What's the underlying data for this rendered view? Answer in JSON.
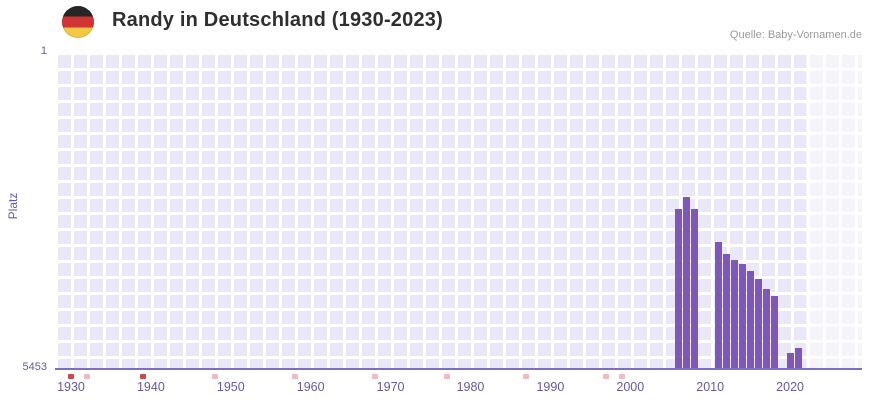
{
  "header": {
    "title": "Randy in Deutschland (1930-2023)",
    "source": "Quelle: Baby-Vornamen.de"
  },
  "chart_data": {
    "type": "bar",
    "title": "Randy in Deutschland (1930-2023)",
    "xlabel": "",
    "ylabel": "Platz",
    "legend": "none",
    "grid": "checkered",
    "y_axis": {
      "top_label": "1",
      "bottom_label": "5453",
      "min": 1,
      "max": 5453,
      "inverted": true
    },
    "x_axis": {
      "range_start": 1928,
      "range_end": 2029,
      "tick_years": [
        1930,
        1940,
        1950,
        1960,
        1970,
        1980,
        1990,
        2000,
        2010,
        2020
      ]
    },
    "series": [
      {
        "name": "Platz",
        "color": "#7e57b8",
        "points": [
          {
            "year": 2006,
            "rank": 2705
          },
          {
            "year": 2007,
            "rank": 2498
          },
          {
            "year": 2008,
            "rank": 2716
          },
          {
            "year": 2011,
            "rank": 3278
          },
          {
            "year": 2012,
            "rank": 3484
          },
          {
            "year": 2013,
            "rank": 3598
          },
          {
            "year": 2014,
            "rank": 3651
          },
          {
            "year": 2015,
            "rank": 3775
          },
          {
            "year": 2016,
            "rank": 3912
          },
          {
            "year": 2017,
            "rank": 4085
          },
          {
            "year": 2018,
            "rank": 4203
          },
          {
            "year": 2020,
            "rank": 5192
          },
          {
            "year": 2021,
            "rank": 5108
          }
        ]
      }
    ],
    "no_data_marks": [
      {
        "year": 1930,
        "shade": "dark"
      },
      {
        "year": 1932,
        "shade": "light"
      },
      {
        "year": 1939,
        "shade": "dark"
      },
      {
        "year": 1948,
        "shade": "light"
      },
      {
        "year": 1958,
        "shade": "light"
      },
      {
        "year": 1968,
        "shade": "light"
      },
      {
        "year": 1977,
        "shade": "light"
      },
      {
        "year": 1987,
        "shade": "light"
      },
      {
        "year": 1997,
        "shade": "light"
      },
      {
        "year": 1999,
        "shade": "light"
      }
    ],
    "recent_band": {
      "from": 2022,
      "to": 2029
    }
  },
  "colors": {
    "bar": "#7e57b8",
    "axis_line": "#7b6ec6",
    "tick_label": "#6459a7",
    "mark_dark": "#cf4747",
    "mark_light": "#f3b9c1",
    "band": "rgba(255,255,255,0.55)"
  }
}
